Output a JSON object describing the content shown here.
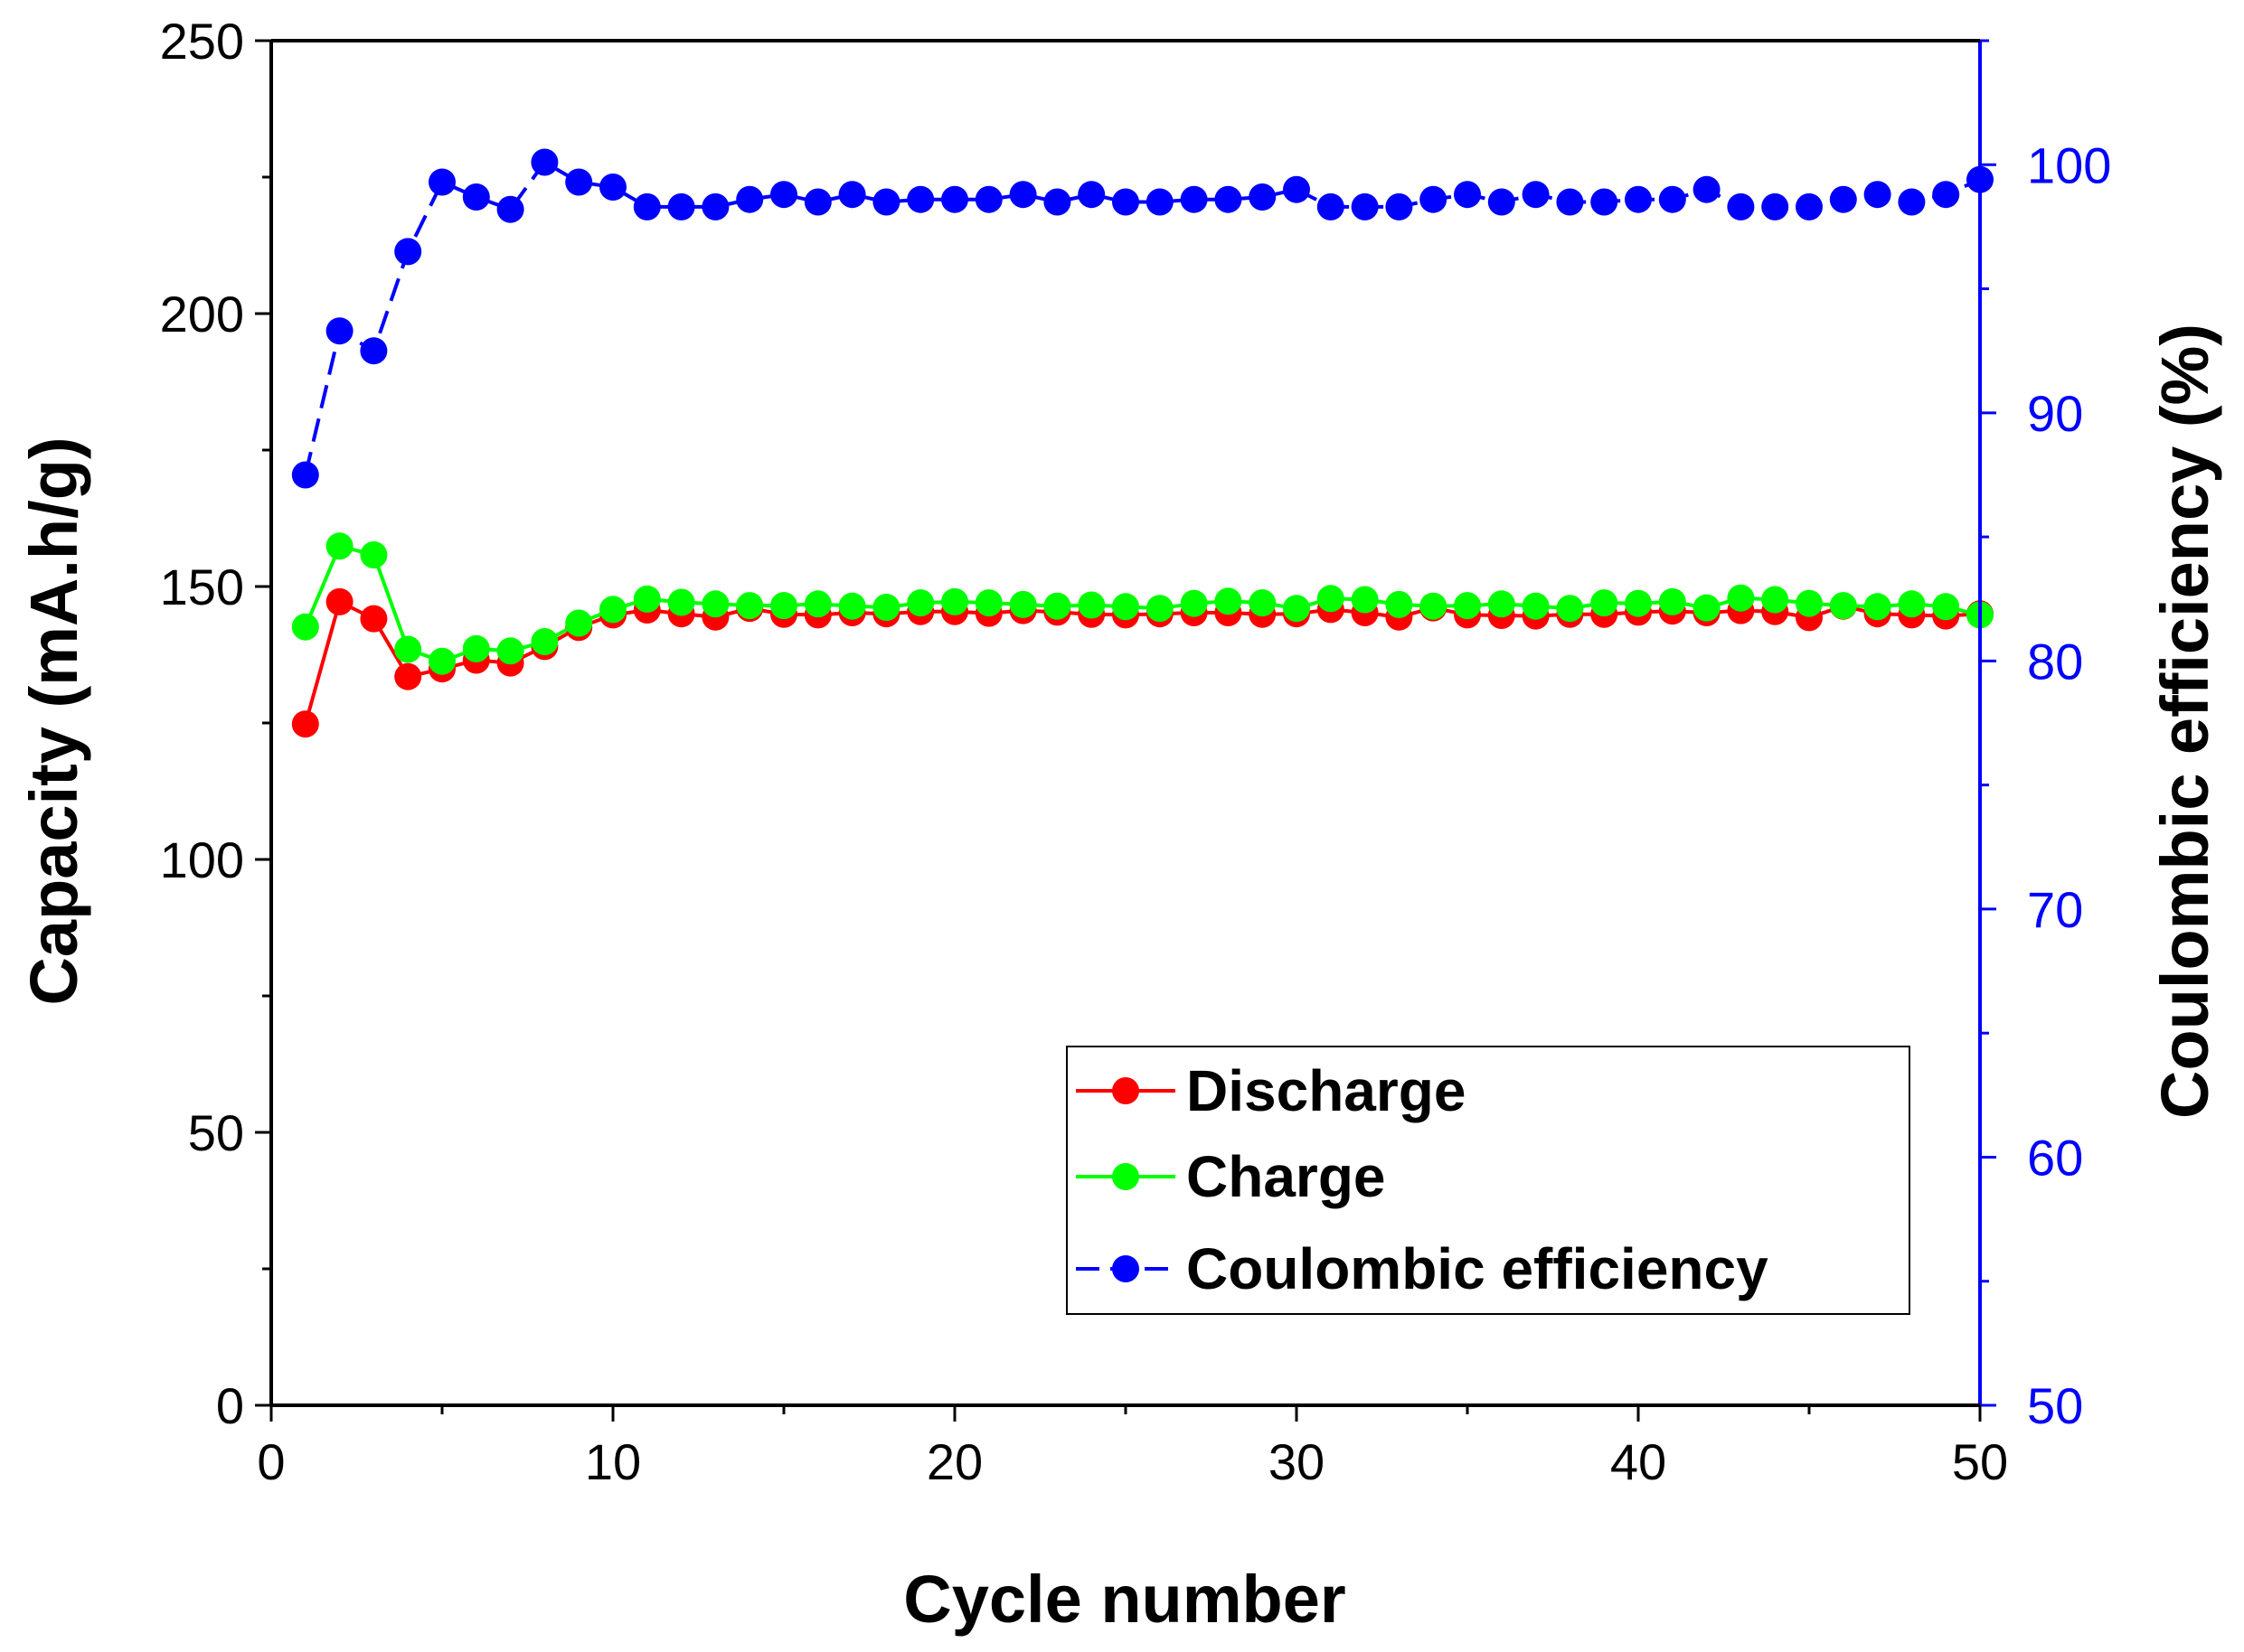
{
  "chart_data": {
    "type": "line",
    "xlabel": "Cycle number",
    "ylabel": "Capacity (mA.h/g)",
    "y2label": "Coulombic efficiency (%)",
    "xlim": [
      0,
      50
    ],
    "ylim": [
      0,
      250
    ],
    "y2lim": [
      50,
      105
    ],
    "xticks": [
      0,
      10,
      20,
      30,
      40,
      50
    ],
    "yticks": [
      0,
      50,
      100,
      150,
      200,
      250
    ],
    "y2ticks": [
      50,
      60,
      70,
      80,
      90,
      100
    ],
    "grid": false,
    "legend_position": "bottom-right",
    "colors": {
      "discharge": "#ff0000",
      "charge": "#00ff00",
      "efficiency": "#0000ff",
      "right_axis": "#0000ff"
    },
    "x": [
      1,
      2,
      3,
      4,
      5,
      6,
      7,
      8,
      9,
      10,
      11,
      12,
      13,
      14,
      15,
      16,
      17,
      18,
      19,
      20,
      21,
      22,
      23,
      24,
      25,
      26,
      27,
      28,
      29,
      30,
      31,
      32,
      33,
      34,
      35,
      36,
      37,
      38,
      39,
      40,
      41,
      42,
      43,
      44,
      45,
      46,
      47,
      48,
      49,
      50
    ],
    "series": [
      {
        "name": "Discharge",
        "axis": "left",
        "style": "solid",
        "values": [
          124.8,
          147.2,
          144.1,
          133.5,
          134.9,
          136.5,
          136,
          139,
          142.5,
          144.8,
          145.7,
          145,
          144.4,
          146,
          144.9,
          144.8,
          145.2,
          145,
          145.4,
          145.4,
          145.1,
          145.6,
          145.3,
          144.9,
          144.8,
          145,
          145.2,
          145.2,
          144.9,
          145,
          145.8,
          145.2,
          144.4,
          146.1,
          144.8,
          144.7,
          144.6,
          144.9,
          144.9,
          145.3,
          145.5,
          145.2,
          145.6,
          145.4,
          144.3,
          146.4,
          145,
          144.8,
          144.6,
          145
        ]
      },
      {
        "name": "Charge",
        "axis": "left",
        "style": "solid",
        "values": [
          142.6,
          157.4,
          155.8,
          138.5,
          136.3,
          138.6,
          138.2,
          139.9,
          143.3,
          145.8,
          147.7,
          147.1,
          146.8,
          146.5,
          146.5,
          146.8,
          146.4,
          146.2,
          147,
          147.2,
          147,
          146.7,
          146.4,
          146.6,
          146.3,
          146,
          146.9,
          147.3,
          147,
          146,
          147.8,
          147.6,
          146.7,
          146.4,
          146.5,
          146.8,
          146.4,
          146,
          147,
          146.9,
          147.2,
          146.1,
          147.9,
          147.6,
          146.9,
          146.5,
          146.3,
          146.8,
          146.3,
          144.8
        ]
      },
      {
        "name": "Coulombic efficiency",
        "axis": "right",
        "style": "dashed",
        "values": [
          87.5,
          93.3,
          92.5,
          96.5,
          99.3,
          98.7,
          98.2,
          100.1,
          99.3,
          99.1,
          98.3,
          98.3,
          98.3,
          98.6,
          98.8,
          98.5,
          98.8,
          98.5,
          98.6,
          98.6,
          98.6,
          98.8,
          98.5,
          98.8,
          98.5,
          98.5,
          98.6,
          98.6,
          98.7,
          99,
          98.3,
          98.3,
          98.3,
          98.6,
          98.8,
          98.5,
          98.8,
          98.5,
          98.5,
          98.6,
          98.6,
          99,
          98.3,
          98.3,
          98.3,
          98.6,
          98.8,
          98.5,
          98.8,
          99.4
        ]
      }
    ]
  }
}
